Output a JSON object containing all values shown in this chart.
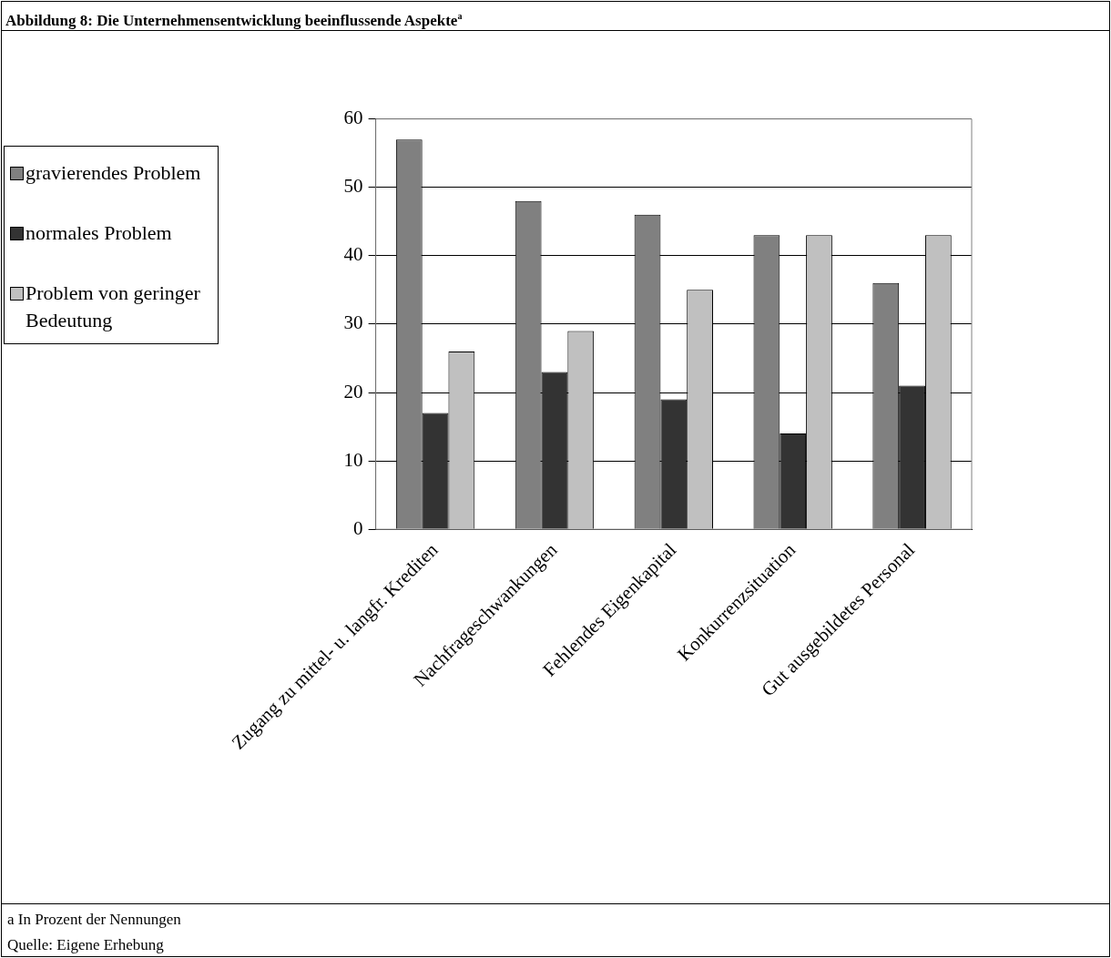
{
  "chart_data": {
    "type": "bar",
    "title": "Abbildung 8:  Die Unternehmensentwicklung beeinflussende Aspekte$^{a}$",
    "categories": [
      "Zugang zu mittel- u. langfr. Krediten",
      "Nachfrageschwankungen",
      "Fehlendes Eigenkapital",
      "Konkurrenzsituation",
      "Gut ausgebildetes Personal"
    ],
    "series": [
      {
        "name": "gravierendes Problem",
        "color": "#808080",
        "values": [
          57,
          48,
          46,
          43,
          36
        ]
      },
      {
        "name": "normales Problem",
        "color": "#333333",
        "values": [
          17,
          23,
          19,
          14,
          21
        ]
      },
      {
        "name": "Problem von geringer Bedeutung",
        "color": "#c0c0c0",
        "values": [
          26,
          29,
          35,
          43,
          43
        ]
      }
    ],
    "ylim": [
      0,
      60
    ],
    "yticks": [
      0,
      10,
      20,
      30,
      40,
      50,
      60
    ],
    "grid": "y",
    "legend": "left",
    "annotations": [
      "a In Prozent der Nennungen",
      "Quelle: Eigene Erhebung"
    ]
  }
}
